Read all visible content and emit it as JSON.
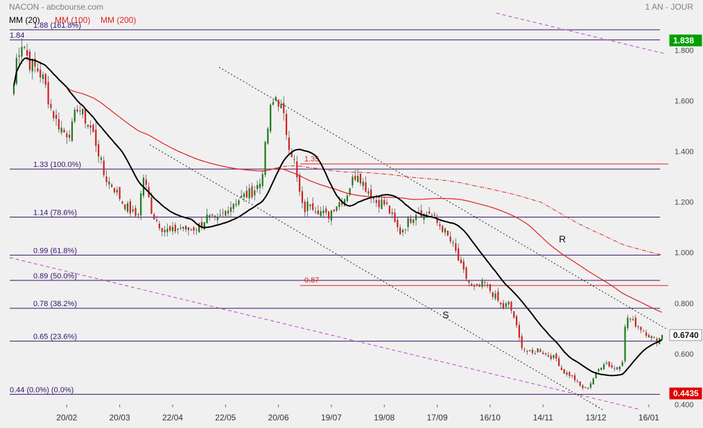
{
  "header": {
    "title": "NACON - abcbourse.com",
    "period": "1 AN - JOUR",
    "legend": [
      {
        "label": "MM (20)",
        "color": "#000000"
      },
      {
        "label": "MM (100)",
        "color": "#e02020"
      },
      {
        "label": "MM (200)",
        "color": "#e02020"
      }
    ]
  },
  "chart_data": {
    "type": "candlestick",
    "ylim": [
      0.4,
      1.9
    ],
    "y_ticks": [
      "1.800",
      "1.600",
      "1.400",
      "1.200",
      "1.000",
      "0.800",
      "0.600",
      "0.400"
    ],
    "y_tick_values": [
      1.8,
      1.6,
      1.4,
      1.2,
      1.0,
      0.8,
      0.6,
      0.4
    ],
    "x_ticks": [
      "20/02",
      "20/03",
      "22/04",
      "22/05",
      "20/06",
      "19/07",
      "19/08",
      "17/09",
      "16/10",
      "14/11",
      "13/12",
      "16/01"
    ],
    "n_sessions": 246,
    "x_tick_sessions": [
      20,
      40,
      60,
      80,
      100,
      120,
      140,
      160,
      180,
      200,
      220,
      240
    ],
    "price_badges": [
      {
        "text": "1.838",
        "value": 1.838,
        "color": "#00a000"
      },
      {
        "text": "0.6740",
        "value": 0.674,
        "color": "#ffffff"
      },
      {
        "text": "0.4435",
        "value": 0.4435,
        "color": "#e00000"
      }
    ],
    "fibonacci": [
      {
        "value": 1.88,
        "label": "1.88  (161.8%)"
      },
      {
        "value": 1.84,
        "label": "1.84"
      },
      {
        "value": 1.33,
        "label": "1.33  (100.0%)"
      },
      {
        "value": 1.14,
        "label": "1.14  (78.6%)"
      },
      {
        "value": 0.99,
        "label": "0.99  (61.8%)"
      },
      {
        "value": 0.89,
        "label": "0.89  (50.0%)"
      },
      {
        "value": 0.78,
        "label": "0.78  (38.2%)"
      },
      {
        "value": 0.65,
        "label": "0.65  (23.6%)"
      },
      {
        "value": 0.44,
        "label": "0.44  (0.0%) (0.0%)"
      }
    ],
    "levels": [
      {
        "value": 1.35,
        "label": "1.35",
        "color": "#e02020"
      },
      {
        "value": 0.87,
        "label": "0.87",
        "color": "#e02020"
      }
    ],
    "annotations": [
      {
        "text": "R",
        "session": 206,
        "value": 1.04
      },
      {
        "text": "S",
        "session": 162,
        "value": 0.74
      }
    ],
    "keypoints": [
      [
        0,
        1.66
      ],
      [
        1,
        1.78
      ],
      [
        3,
        1.84
      ],
      [
        5,
        1.75
      ],
      [
        8,
        1.72
      ],
      [
        10,
        1.68
      ],
      [
        12,
        1.58
      ],
      [
        14,
        1.52
      ],
      [
        17,
        1.47
      ],
      [
        19,
        1.48
      ],
      [
        21,
        1.58
      ],
      [
        24,
        1.52
      ],
      [
        26,
        1.48
      ],
      [
        28,
        1.4
      ],
      [
        30,
        1.3
      ],
      [
        33,
        1.26
      ],
      [
        36,
        1.2
      ],
      [
        39,
        1.16
      ],
      [
        41,
        1.14
      ],
      [
        43,
        1.3
      ],
      [
        46,
        1.15
      ],
      [
        49,
        1.1
      ],
      [
        52,
        1.08
      ],
      [
        55,
        1.1
      ],
      [
        58,
        1.09
      ],
      [
        61,
        1.1
      ],
      [
        64,
        1.14
      ],
      [
        67,
        1.12
      ],
      [
        70,
        1.16
      ],
      [
        73,
        1.2
      ],
      [
        76,
        1.22
      ],
      [
        79,
        1.24
      ],
      [
        82,
        1.28
      ],
      [
        83,
        1.38
      ],
      [
        85,
        1.56
      ],
      [
        87,
        1.62
      ],
      [
        89,
        1.56
      ],
      [
        91,
        1.44
      ],
      [
        93,
        1.36
      ],
      [
        94,
        1.28
      ],
      [
        96,
        1.16
      ],
      [
        98,
        1.2
      ],
      [
        100,
        1.18
      ],
      [
        102,
        1.16
      ],
      [
        104,
        1.14
      ],
      [
        106,
        1.18
      ],
      [
        108,
        1.2
      ],
      [
        110,
        1.22
      ],
      [
        112,
        1.28
      ],
      [
        114,
        1.32
      ],
      [
        116,
        1.27
      ],
      [
        118,
        1.24
      ],
      [
        120,
        1.2
      ],
      [
        122,
        1.2
      ],
      [
        124,
        1.18
      ],
      [
        126,
        1.12
      ],
      [
        128,
        1.08
      ],
      [
        130,
        1.11
      ],
      [
        132,
        1.14
      ],
      [
        134,
        1.17
      ],
      [
        136,
        1.15
      ],
      [
        138,
        1.16
      ],
      [
        140,
        1.12
      ],
      [
        142,
        1.1
      ],
      [
        144,
        1.06
      ],
      [
        146,
        1.02
      ],
      [
        148,
        0.95
      ],
      [
        150,
        0.9
      ],
      [
        152,
        0.86
      ],
      [
        154,
        0.86
      ],
      [
        156,
        0.88
      ],
      [
        158,
        0.85
      ],
      [
        160,
        0.82
      ],
      [
        162,
        0.78
      ],
      [
        164,
        0.8
      ],
      [
        166,
        0.74
      ],
      [
        168,
        0.64
      ],
      [
        170,
        0.61
      ],
      [
        172,
        0.6
      ],
      [
        174,
        0.62
      ],
      [
        176,
        0.6
      ],
      [
        178,
        0.59
      ],
      [
        180,
        0.58
      ],
      [
        182,
        0.53
      ],
      [
        184,
        0.52
      ],
      [
        186,
        0.5
      ],
      [
        188,
        0.47
      ],
      [
        190,
        0.46
      ],
      [
        192,
        0.5
      ],
      [
        194,
        0.54
      ],
      [
        196,
        0.57
      ],
      [
        198,
        0.55
      ],
      [
        200,
        0.54
      ],
      [
        202,
        0.58
      ],
      [
        203,
        0.75
      ],
      [
        205,
        0.73
      ],
      [
        207,
        0.71
      ],
      [
        209,
        0.69
      ],
      [
        211,
        0.67
      ],
      [
        213,
        0.65
      ],
      [
        215,
        0.67
      ]
    ]
  }
}
